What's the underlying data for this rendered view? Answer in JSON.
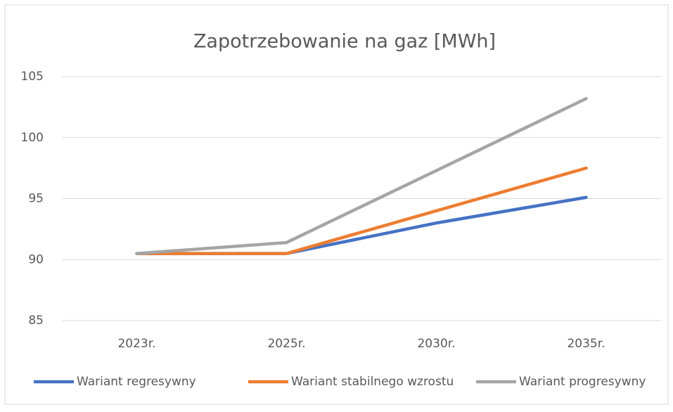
{
  "chart_data": {
    "type": "line",
    "title": "Zapotrzebowanie na gaz [MWh]",
    "categories": [
      "2023r.",
      "2025r.",
      "2030r.",
      "2035r."
    ],
    "series": [
      {
        "name": "Wariant regresywny",
        "color": "#4472c4",
        "values": [
          90.5,
          90.5,
          93,
          95.1
        ]
      },
      {
        "name": "Wariant stabilnego wzrostu",
        "color": "#ed7d31",
        "values": [
          90.5,
          90.5,
          94,
          97.5
        ]
      },
      {
        "name": "Wariant progresywny",
        "color": "#a5a5a5",
        "values": [
          90.5,
          91.4,
          97.3,
          103.2
        ]
      }
    ],
    "ylim": [
      85,
      105
    ],
    "yticks": [
      85,
      90,
      95,
      100,
      105
    ],
    "grid": true,
    "legend": "bottom"
  }
}
